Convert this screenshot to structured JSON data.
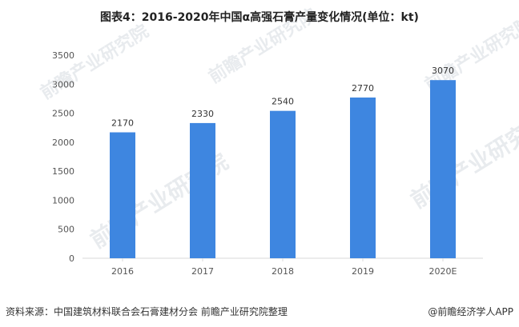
{
  "title": "图表4：2016-2020年中国α高强石膏产量变化情况(单位：kt)",
  "colors": {
    "bar": "#3e86e0",
    "axis_text": "#555555",
    "value_text": "#333333",
    "axis_line": "#d9d9d9"
  },
  "chart_data": {
    "type": "bar",
    "categories": [
      "2016",
      "2017",
      "2018",
      "2019",
      "2020E"
    ],
    "values": [
      2170,
      2330,
      2540,
      2770,
      3070
    ],
    "data_labels": [
      "2170",
      "2330",
      "2540",
      "2770",
      "3070"
    ],
    "ylim": [
      0,
      3500
    ],
    "yticks": [
      "0",
      "500",
      "1000",
      "1500",
      "2000",
      "2500",
      "3000",
      "3500"
    ],
    "grid": false
  },
  "watermark": {
    "brand": "前瞻产业研究院"
  },
  "footer": {
    "source": "资料来源：中国建筑材料联合会石膏建材分会 前瞻产业研究院整理",
    "brand": "@前瞻经济学人APP"
  }
}
